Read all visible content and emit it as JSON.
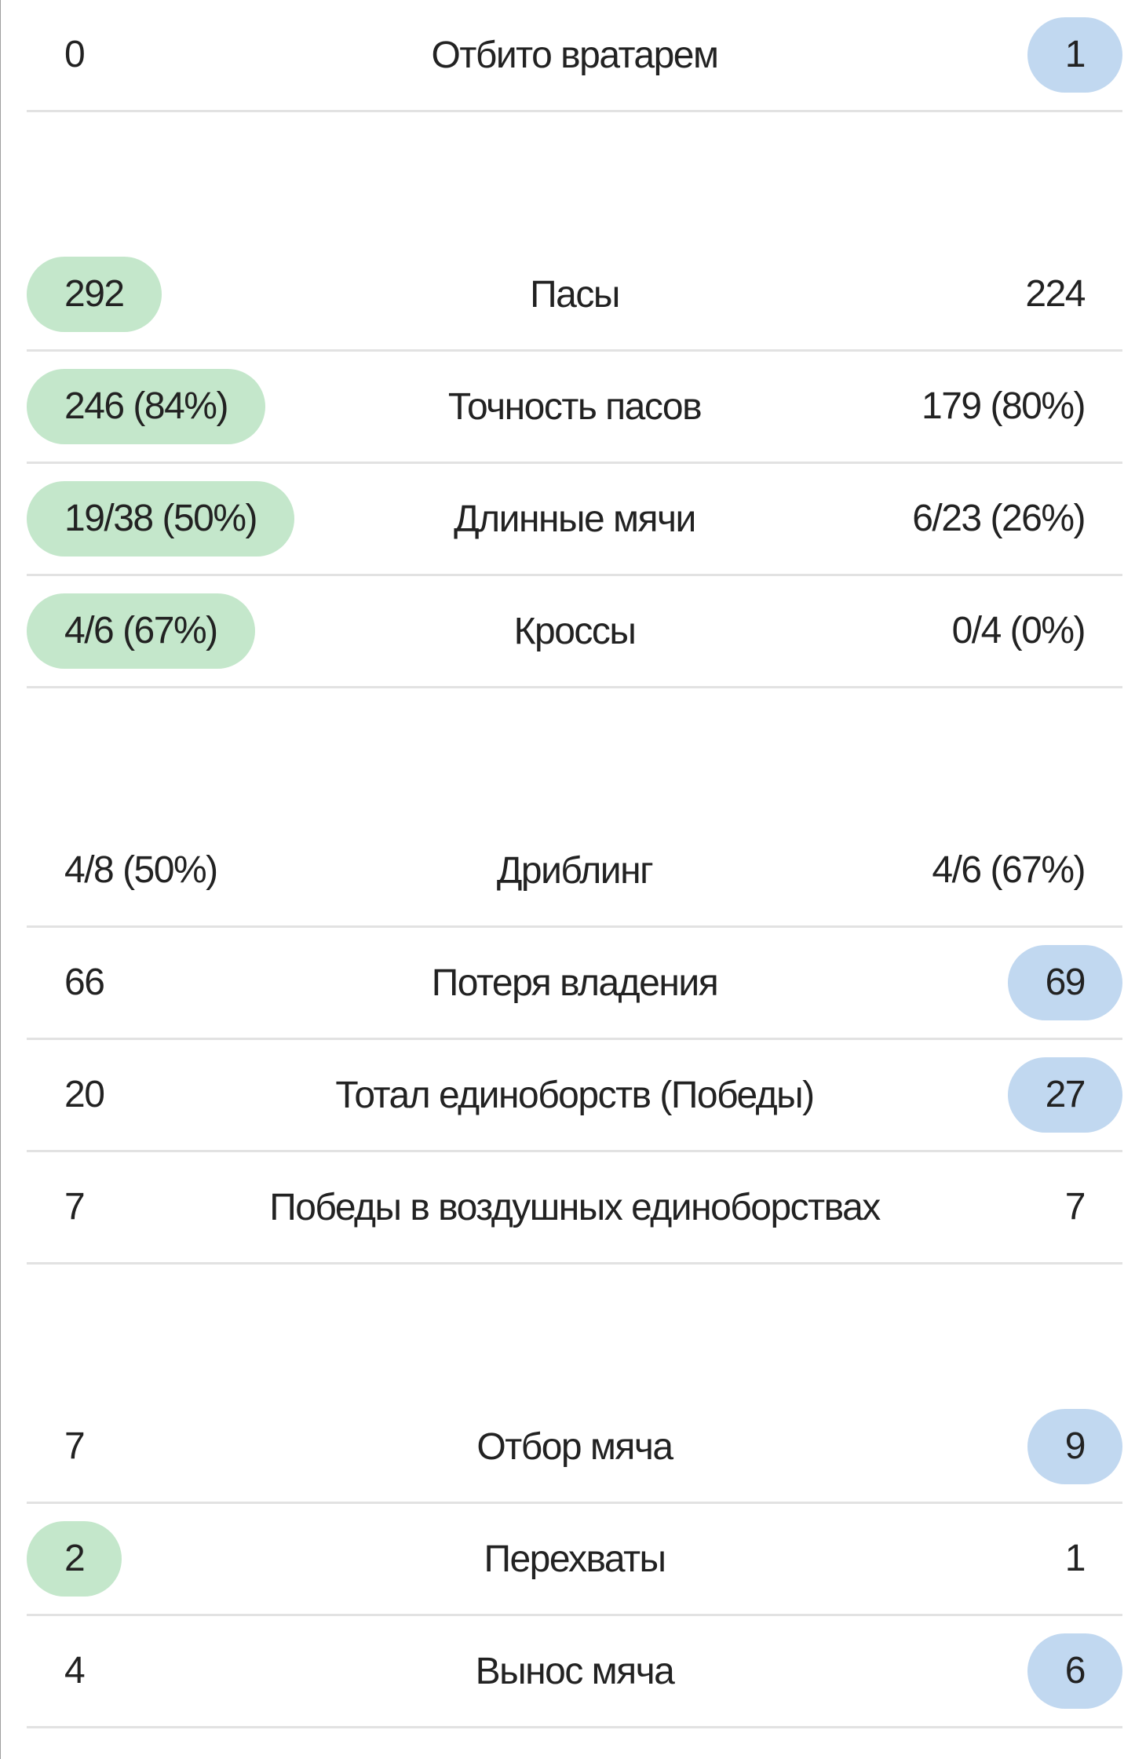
{
  "colors": {
    "left_highlight": "#c4e7cb",
    "right_highlight": "#c1d8f0",
    "divider": "#e2e2e2"
  },
  "groups": [
    {
      "rows": [
        {
          "label": "Отбито вратарем",
          "left": "0",
          "right": "1",
          "highlight": "right"
        }
      ]
    },
    {
      "rows": [
        {
          "label": "Пасы",
          "left": "292",
          "right": "224",
          "highlight": "left"
        },
        {
          "label": "Точность пасов",
          "left": "246 (84%)",
          "right": "179 (80%)",
          "highlight": "left"
        },
        {
          "label": "Длинные мячи",
          "left": "19/38 (50%)",
          "right": "6/23 (26%)",
          "highlight": "left"
        },
        {
          "label": "Кроссы",
          "left": "4/6 (67%)",
          "right": "0/4 (0%)",
          "highlight": "left"
        }
      ]
    },
    {
      "rows": [
        {
          "label": "Дриблинг",
          "left": "4/8 (50%)",
          "right": "4/6 (67%)",
          "highlight": "none"
        },
        {
          "label": "Потеря владения",
          "left": "66",
          "right": "69",
          "highlight": "right"
        },
        {
          "label": "Тотал единоборств (Победы)",
          "left": "20",
          "right": "27",
          "highlight": "right"
        },
        {
          "label": "Победы в воздушных единоборствах",
          "left": "7",
          "right": "7",
          "highlight": "none"
        }
      ]
    },
    {
      "rows": [
        {
          "label": "Отбор мяча",
          "left": "7",
          "right": "9",
          "highlight": "right"
        },
        {
          "label": "Перехваты",
          "left": "2",
          "right": "1",
          "highlight": "left"
        },
        {
          "label": "Вынос мяча",
          "left": "4",
          "right": "6",
          "highlight": "right"
        }
      ]
    }
  ]
}
